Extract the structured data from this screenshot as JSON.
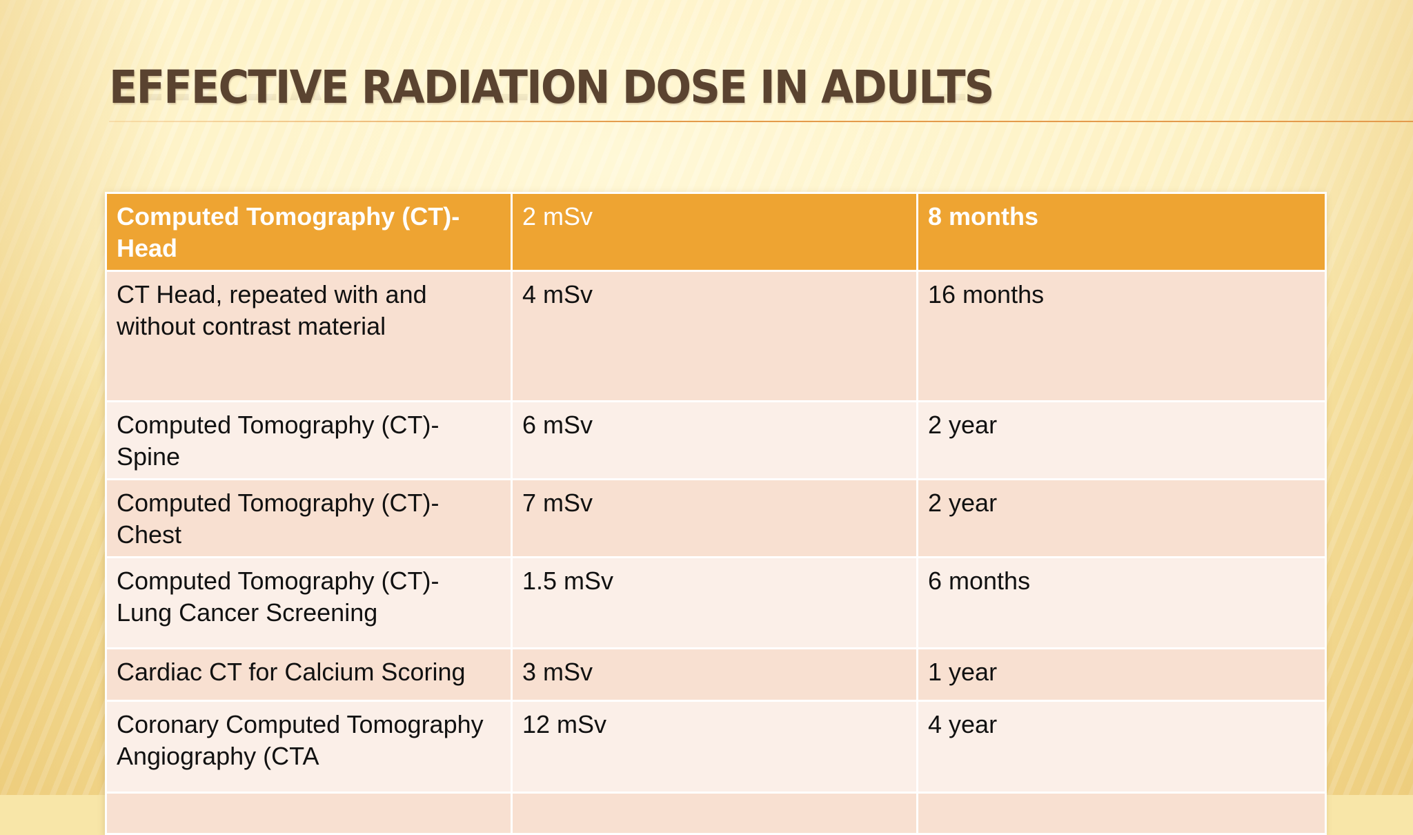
{
  "slide": {
    "title": "EFFECTIVE RADIATION DOSE IN ADULTS"
  },
  "table": {
    "header": [
      "Computed Tomography (CT)- Head",
      "2 mSv",
      "8 months"
    ],
    "rows": [
      [
        "CT Head, repeated with and without contrast material",
        "4 mSv",
        "16 months"
      ],
      [
        "Computed Tomography (CT)- Spine",
        "6 mSv",
        "2 year"
      ],
      [
        "Computed Tomography (CT)- Chest",
        "7 mSv",
        "2 year"
      ],
      [
        "Computed Tomography (CT)- Lung Cancer Screening",
        "1.5 mSv",
        "6 months"
      ],
      [
        "Cardiac CT for Calcium Scoring",
        "3 mSv",
        "1 year"
      ],
      [
        "Coronary Computed Tomography Angiography (CTA",
        "12 mSv",
        "4 year"
      ]
    ]
  },
  "colors": {
    "header_fill": "#eea432",
    "row_dark": "#f8e0d1",
    "row_light": "#fbefe8",
    "title_color": "#5a4330",
    "rule_color": "#e49a4a"
  }
}
